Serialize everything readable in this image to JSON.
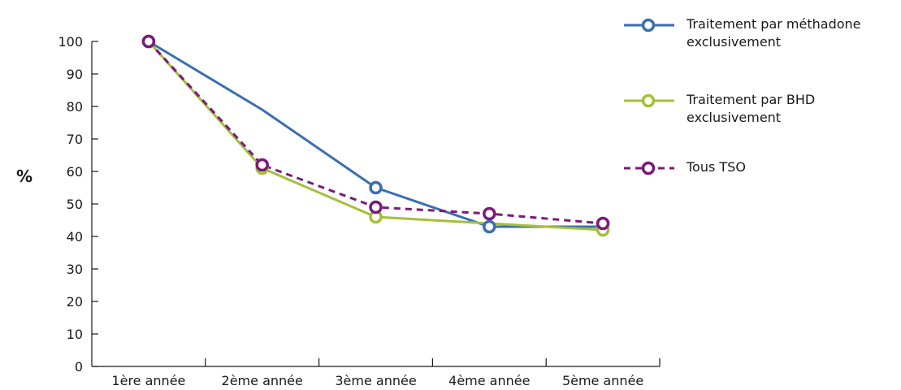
{
  "chart_data": {
    "type": "line",
    "title": "",
    "xlabel": "",
    "ylabel": "%",
    "ylim": [
      0,
      100
    ],
    "yticks": [
      0,
      10,
      20,
      30,
      40,
      50,
      60,
      70,
      80,
      90,
      100
    ],
    "categories": [
      "1ère année",
      "2ème année",
      "3ème année",
      "4ème année",
      "5ème année"
    ],
    "grid": false,
    "legend_position": "top-right",
    "series": [
      {
        "name": "Traitement par méthadone exclusivement",
        "legend_lines": [
          "Traitement par méthadone",
          "exclusivement"
        ],
        "color": "#3a6fb0",
        "dashed": false,
        "values": [
          100,
          79,
          55,
          43,
          43
        ]
      },
      {
        "name": "Traitement par BHD exclusivement",
        "legend_lines": [
          "Traitement par BHD",
          "exclusivement"
        ],
        "color": "#a4c03a",
        "dashed": false,
        "values": [
          100,
          61,
          46,
          44,
          42
        ]
      },
      {
        "name": "Tous TSO",
        "legend_lines": [
          "Tous TSO"
        ],
        "color": "#7a1a7a",
        "dashed": true,
        "values": [
          100,
          62,
          49,
          47,
          44
        ]
      }
    ],
    "markers": [
      {
        "series": 0,
        "points": [
          0,
          2,
          3
        ]
      },
      {
        "series": 1,
        "points": [
          0,
          1,
          2,
          4
        ]
      },
      {
        "series": 2,
        "points": [
          0,
          1,
          2,
          3,
          4
        ]
      }
    ]
  }
}
